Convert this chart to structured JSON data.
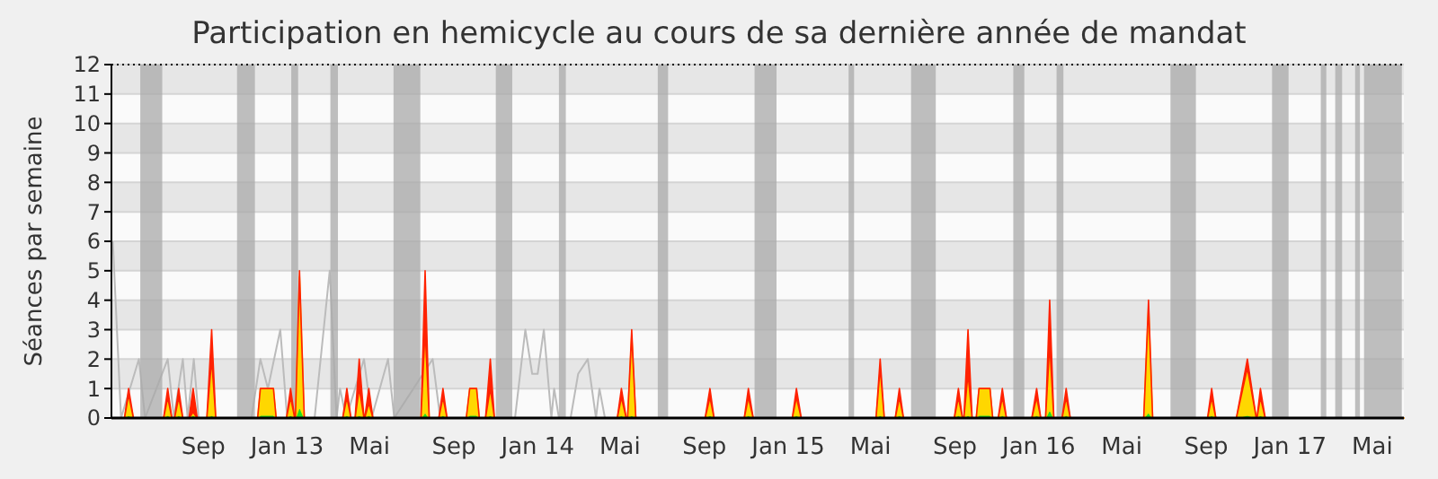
{
  "chart_data": {
    "type": "area",
    "stacked": true,
    "title": "Participation en hemicycle au cours de sa dernière année de mandat",
    "ylabel": "Séances par semaine",
    "xlim": [
      "2012-04-20",
      "2017-06-16"
    ],
    "ylim": [
      0,
      12
    ],
    "yticks": [
      0,
      1,
      2,
      3,
      4,
      5,
      6,
      7,
      8,
      9,
      10,
      11,
      12
    ],
    "xticks": [
      {
        "value": "2012-09-01",
        "label": "Sep"
      },
      {
        "value": "2013-01-01",
        "label": "Jan 13"
      },
      {
        "value": "2013-05-01",
        "label": "Mai"
      },
      {
        "value": "2013-09-01",
        "label": "Sep"
      },
      {
        "value": "2014-01-01",
        "label": "Jan 14"
      },
      {
        "value": "2014-05-01",
        "label": "Mai"
      },
      {
        "value": "2014-09-01",
        "label": "Sep"
      },
      {
        "value": "2015-01-01",
        "label": "Jan 15"
      },
      {
        "value": "2015-05-01",
        "label": "Mai"
      },
      {
        "value": "2015-09-01",
        "label": "Sep"
      },
      {
        "value": "2016-01-01",
        "label": "Jan 16"
      },
      {
        "value": "2016-05-01",
        "label": "Mai"
      },
      {
        "value": "2016-09-01",
        "label": "Sep"
      },
      {
        "value": "2017-01-01",
        "label": "Jan 17"
      },
      {
        "value": "2017-05-01",
        "label": "Mai"
      }
    ],
    "grid": "y",
    "bands": [
      {
        "axis": "x",
        "from": "2012-06-01",
        "to": "2012-07-03",
        "color": "#aaaaaa"
      },
      {
        "axis": "x",
        "from": "2012-10-20",
        "to": "2012-11-15",
        "color": "#aaaaaa"
      },
      {
        "axis": "x",
        "from": "2013-01-07",
        "to": "2013-01-17",
        "color": "#aaaaaa"
      },
      {
        "axis": "x",
        "from": "2013-03-05",
        "to": "2013-03-16",
        "color": "#aaaaaa"
      },
      {
        "axis": "x",
        "from": "2013-06-05",
        "to": "2013-07-14",
        "color": "#aaaaaa"
      },
      {
        "axis": "x",
        "from": "2013-11-01",
        "to": "2013-11-25",
        "color": "#aaaaaa"
      },
      {
        "axis": "x",
        "from": "2014-02-01",
        "to": "2014-02-11",
        "color": "#aaaaaa"
      },
      {
        "axis": "x",
        "from": "2014-06-25",
        "to": "2014-07-10",
        "color": "#aaaaaa"
      },
      {
        "axis": "x",
        "from": "2014-11-13",
        "to": "2014-12-15",
        "color": "#aaaaaa"
      },
      {
        "axis": "x",
        "from": "2015-03-30",
        "to": "2015-04-07",
        "color": "#aaaaaa"
      },
      {
        "axis": "x",
        "from": "2015-06-29",
        "to": "2015-08-04",
        "color": "#aaaaaa"
      },
      {
        "axis": "x",
        "from": "2015-11-25",
        "to": "2015-12-11",
        "color": "#aaaaaa"
      },
      {
        "axis": "x",
        "from": "2016-01-27",
        "to": "2016-02-06",
        "color": "#aaaaaa"
      },
      {
        "axis": "x",
        "from": "2016-07-11",
        "to": "2016-08-17",
        "color": "#aaaaaa"
      },
      {
        "axis": "x",
        "from": "2016-12-06",
        "to": "2016-12-30",
        "color": "#aaaaaa"
      },
      {
        "axis": "x",
        "from": "2017-02-15",
        "to": "2017-02-23",
        "color": "#aaaaaa"
      },
      {
        "axis": "x",
        "from": "2017-03-08",
        "to": "2017-03-18",
        "color": "#aaaaaa"
      },
      {
        "axis": "x",
        "from": "2017-04-06",
        "to": "2017-04-13",
        "color": "#aaaaaa"
      },
      {
        "axis": "x",
        "from": "2017-04-19",
        "to": "2017-06-13",
        "color": "#aaaaaa"
      }
    ],
    "x": [
      "2012-04-20",
      "2012-05-09",
      "2012-05-15",
      "2012-05-22",
      "2012-07-05",
      "2012-07-11",
      "2012-07-17",
      "2012-07-21",
      "2012-07-27",
      "2012-08-02",
      "2012-08-11",
      "2012-08-17",
      "2012-08-23",
      "2012-09-06",
      "2012-09-13",
      "2012-09-19",
      "2012-11-19",
      "2012-11-23",
      "2012-12-12",
      "2012-12-16",
      "2012-12-31",
      "2013-01-06",
      "2013-01-12",
      "2013-01-13",
      "2013-01-19",
      "2013-01-26",
      "2013-03-23",
      "2013-03-29",
      "2013-04-04",
      "2013-04-10",
      "2013-04-16",
      "2013-04-23",
      "2013-04-24",
      "2013-04-30",
      "2013-05-06",
      "2013-07-15",
      "2013-07-21",
      "2013-07-27",
      "2013-08-10",
      "2013-08-16",
      "2013-08-22",
      "2013-09-19",
      "2013-09-24",
      "2013-10-04",
      "2013-10-08",
      "2013-10-17",
      "2013-10-24",
      "2013-10-30",
      "2014-04-27",
      "2014-05-03",
      "2014-05-10",
      "2014-05-12",
      "2014-05-18",
      "2014-05-24",
      "2014-09-02",
      "2014-09-09",
      "2014-09-15",
      "2014-10-29",
      "2014-11-04",
      "2014-11-11",
      "2015-01-07",
      "2015-01-13",
      "2015-01-20",
      "2015-05-09",
      "2015-05-15",
      "2015-05-21",
      "2015-06-06",
      "2015-06-12",
      "2015-06-18",
      "2015-08-31",
      "2015-09-06",
      "2015-09-12",
      "2015-09-14",
      "2015-09-20",
      "2015-09-26",
      "2015-10-02",
      "2015-10-06",
      "2015-10-22",
      "2015-10-26",
      "2015-11-03",
      "2015-11-09",
      "2015-11-15",
      "2015-12-22",
      "2015-12-29",
      "2016-01-04",
      "2016-01-11",
      "2016-01-17",
      "2016-01-23",
      "2016-02-04",
      "2016-02-10",
      "2016-02-16",
      "2016-06-02",
      "2016-06-09",
      "2016-06-15",
      "2016-09-03",
      "2016-09-09",
      "2016-09-15",
      "2016-10-15",
      "2016-10-31",
      "2016-11-13",
      "2016-11-14",
      "2016-11-19",
      "2016-11-26",
      "2017-06-16"
    ],
    "series": [
      {
        "type": "line",
        "color": "#bbbbbb",
        "x": [
          "2012-04-22",
          "2012-05-04",
          "2012-05-30",
          "2012-06-08",
          "2012-07-11",
          "2012-07-20",
          "2012-08-02",
          "2012-08-09",
          "2012-08-18",
          "2012-08-25",
          "2012-11-10",
          "2012-11-23",
          "2012-12-04",
          "2012-12-22",
          "2013-01-01",
          "2013-02-10",
          "2013-03-04",
          "2013-03-14",
          "2013-03-19",
          "2013-03-28",
          "2013-04-23",
          "2013-05-04",
          "2013-05-28",
          "2013-06-06",
          "2013-08-01",
          "2013-08-12",
          "2013-11-29",
          "2013-12-14",
          "2013-12-24",
          "2014-01-01",
          "2014-01-10",
          "2014-01-21",
          "2014-01-25",
          "2014-02-01",
          "2014-02-18",
          "2014-03-01",
          "2014-03-15",
          "2014-03-27",
          "2014-04-01",
          "2014-04-09"
        ],
        "values": [
          6,
          0,
          2,
          0,
          2,
          0,
          2,
          0,
          2,
          0,
          0,
          2,
          1,
          3,
          0,
          0,
          5,
          0,
          1,
          0,
          2,
          0,
          2,
          0,
          2,
          0,
          0,
          3,
          1.5,
          1.5,
          3,
          0,
          1,
          0,
          0,
          1.5,
          2,
          0,
          1,
          0
        ]
      },
      {
        "color": "#22dd22",
        "values": [
          0,
          0,
          0.1,
          0,
          0,
          0.1,
          0,
          0,
          0.1,
          0,
          0,
          0.1,
          0,
          0,
          0.1,
          0,
          0,
          0.1,
          0.1,
          0,
          0,
          0.1,
          0,
          0,
          0.4,
          0,
          0,
          0.1,
          0,
          0,
          0.1,
          0,
          0,
          0.1,
          0,
          0,
          0.2,
          0,
          0,
          0.1,
          0,
          0,
          0.1,
          0.1,
          0,
          0,
          0.1,
          0,
          0,
          0.1,
          0,
          0,
          0.1,
          0,
          0,
          0.1,
          0,
          0,
          0.1,
          0,
          0,
          0.1,
          0,
          0,
          0.1,
          0,
          0,
          0.1,
          0,
          0,
          0.1,
          0,
          0,
          0.1,
          0,
          0,
          0.1,
          0.1,
          0,
          0,
          0.1,
          0,
          0,
          0.1,
          0,
          0,
          0.3,
          0,
          0,
          0.1,
          0,
          0,
          0.2,
          0,
          0,
          0.1,
          0,
          0,
          0.1,
          0,
          0,
          0.1,
          0,
          0
        ]
      },
      {
        "color": "#ffd700",
        "values": [
          0,
          0,
          0.7,
          0,
          0,
          0.6,
          0,
          0,
          0.6,
          0,
          0,
          0.1,
          0,
          0,
          1.9,
          0,
          0,
          0.9,
          0.9,
          0,
          0,
          0.6,
          0,
          0,
          4.4,
          0,
          0,
          0.6,
          0,
          0,
          0.9,
          0,
          0,
          0.4,
          0,
          0,
          2.8,
          0,
          0,
          0.6,
          0,
          0,
          0.9,
          0.9,
          0,
          0,
          0.9,
          0,
          0,
          0.6,
          0,
          0,
          2.7,
          0,
          0,
          0.6,
          0,
          0,
          0.6,
          0,
          0,
          0.6,
          0,
          0,
          1.6,
          0,
          0,
          0.6,
          0,
          0,
          0.6,
          0,
          0,
          1.4,
          0,
          0,
          0.9,
          0.9,
          0,
          0,
          0.6,
          0,
          0,
          0.6,
          0,
          0,
          2.2,
          0,
          0,
          0.6,
          0,
          0,
          3.6,
          0,
          0,
          0.6,
          0,
          0,
          1.6,
          0,
          0,
          0.6,
          0,
          0
        ]
      },
      {
        "color": "#ff2200",
        "values": [
          0,
          0,
          0.2,
          0,
          0,
          0.3,
          0,
          0,
          0.3,
          0,
          0,
          0.8,
          0,
          0,
          1,
          0,
          0,
          0,
          0,
          0,
          0,
          0.3,
          0,
          0,
          0.2,
          0,
          0,
          0.3,
          0,
          0,
          1,
          0,
          0,
          0.5,
          0,
          0,
          2,
          0,
          0,
          0.3,
          0,
          0,
          0,
          0,
          0,
          0,
          1,
          0,
          0,
          0.3,
          0,
          0,
          0.2,
          0,
          0,
          0.3,
          0,
          0,
          0.3,
          0,
          0,
          0.3,
          0,
          0,
          0.3,
          0,
          0,
          0.3,
          0,
          0,
          0.3,
          0,
          0,
          1.5,
          0,
          0,
          0,
          0,
          0,
          0,
          0.3,
          0,
          0,
          0.3,
          0,
          0,
          1.5,
          0,
          0,
          0.3,
          0,
          0,
          0.2,
          0,
          0,
          0.3,
          0,
          0,
          0.3,
          0,
          0,
          0.3,
          0,
          0
        ]
      }
    ]
  }
}
